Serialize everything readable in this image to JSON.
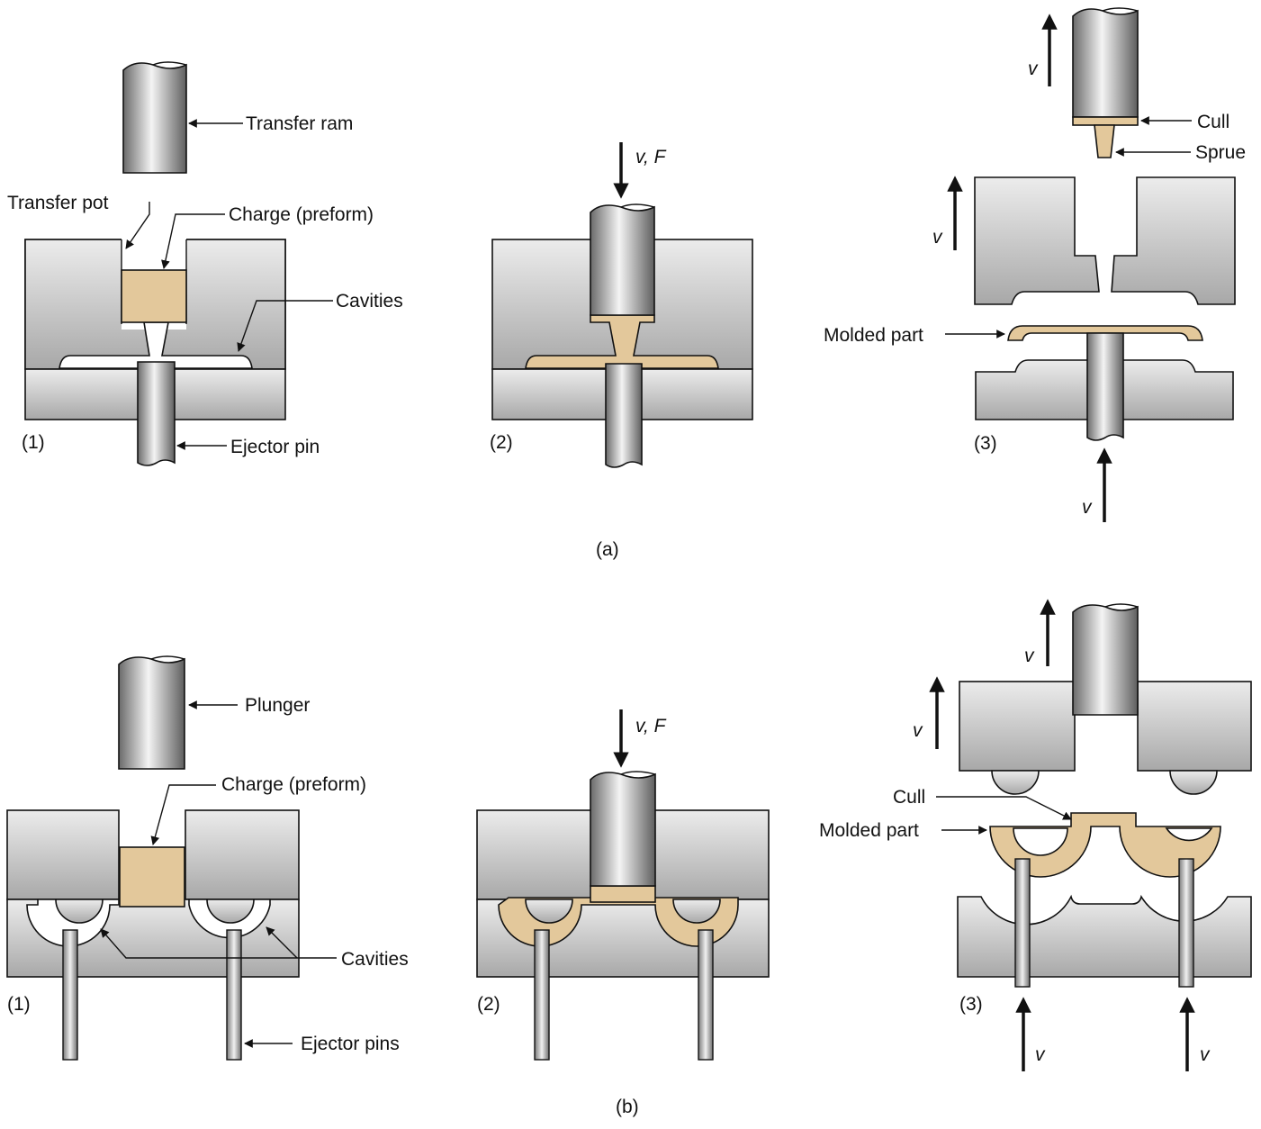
{
  "colors": {
    "die_light": "#e8e8e8",
    "die_dark": "#a9a9a9",
    "charge": "#e3c89b",
    "outline": "#111111"
  },
  "part_a": {
    "caption": "(a)",
    "step1": {
      "number": "(1)",
      "transfer_ram": "Transfer ram",
      "transfer_pot": "Transfer pot",
      "charge": "Charge (preform)",
      "cavities": "Cavities",
      "ejector_pin": "Ejector pin"
    },
    "step2": {
      "number": "(2)",
      "force_label": "v, F"
    },
    "step3": {
      "number": "(3)",
      "cull": "Cull",
      "sprue": "Sprue",
      "molded_part": "Molded part",
      "ram_velocity": "v",
      "die_velocity": "v",
      "pin_velocity": "v"
    }
  },
  "part_b": {
    "caption": "(b)",
    "step1": {
      "number": "(1)",
      "plunger": "Plunger",
      "charge": "Charge (preform)",
      "cavities": "Cavities",
      "ejector_pins": "Ejector pins"
    },
    "step2": {
      "number": "(2)",
      "force_label": "v, F"
    },
    "step3": {
      "number": "(3)",
      "cull": "Cull",
      "molded_part": "Molded part",
      "plunger_velocity": "v",
      "die_velocity": "v",
      "pin_velocity_left": "v",
      "pin_velocity_right": "v"
    }
  }
}
